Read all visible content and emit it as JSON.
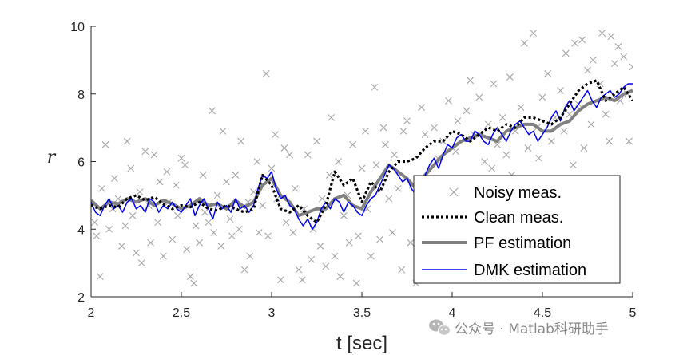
{
  "chart_data": {
    "type": "line",
    "xlabel": "t [sec]",
    "ylabel": "r",
    "xlim": [
      2,
      5
    ],
    "ylim": [
      2,
      10
    ],
    "xticks": [
      "2",
      "2.5",
      "3",
      "3.5",
      "4",
      "4.5",
      "5"
    ],
    "yticks": [
      "2",
      "4",
      "6",
      "8",
      "10"
    ],
    "grid": false,
    "legend_position": "bottom-right",
    "series": [
      {
        "name": "Noisy meas.",
        "style": "markers-x",
        "color": "#a6a6a6",
        "points": [
          [
            2.02,
            4.2
          ],
          [
            2.03,
            3.8
          ],
          [
            2.05,
            2.6
          ],
          [
            2.06,
            5.2
          ],
          [
            2.08,
            6.5
          ],
          [
            2.1,
            4.0
          ],
          [
            2.12,
            4.6
          ],
          [
            2.13,
            5.5
          ],
          [
            2.15,
            4.9
          ],
          [
            2.17,
            3.5
          ],
          [
            2.19,
            4.1
          ],
          [
            2.2,
            6.6
          ],
          [
            2.22,
            5.8
          ],
          [
            2.23,
            4.4
          ],
          [
            2.25,
            3.3
          ],
          [
            2.27,
            5.1
          ],
          [
            2.28,
            3.0
          ],
          [
            2.3,
            6.3
          ],
          [
            2.32,
            4.7
          ],
          [
            2.33,
            3.6
          ],
          [
            2.35,
            6.2
          ],
          [
            2.37,
            4.2
          ],
          [
            2.38,
            5.4
          ],
          [
            2.4,
            3.2
          ],
          [
            2.42,
            5.7
          ],
          [
            2.43,
            4.8
          ],
          [
            2.45,
            3.7
          ],
          [
            2.47,
            5.3
          ],
          [
            2.48,
            4.4
          ],
          [
            2.5,
            6.1
          ],
          [
            2.52,
            5.9
          ],
          [
            2.53,
            3.4
          ],
          [
            2.55,
            2.6
          ],
          [
            2.57,
            2.4
          ],
          [
            2.58,
            4.1
          ],
          [
            2.6,
            3.6
          ],
          [
            2.62,
            5.6
          ],
          [
            2.63,
            4.5
          ],
          [
            2.65,
            4.2
          ],
          [
            2.67,
            7.5
          ],
          [
            2.68,
            3.9
          ],
          [
            2.7,
            5.0
          ],
          [
            2.72,
            3.5
          ],
          [
            2.73,
            6.9
          ],
          [
            2.75,
            5.4
          ],
          [
            2.77,
            4.3
          ],
          [
            2.78,
            3.8
          ],
          [
            2.8,
            5.6
          ],
          [
            2.82,
            4.0
          ],
          [
            2.83,
            6.6
          ],
          [
            2.85,
            2.8
          ],
          [
            2.87,
            4.8
          ],
          [
            2.88,
            3.2
          ],
          [
            2.9,
            5.1
          ],
          [
            2.92,
            6.0
          ],
          [
            2.93,
            3.9
          ],
          [
            2.95,
            4.7
          ],
          [
            2.97,
            8.6
          ],
          [
            2.98,
            3.8
          ],
          [
            3.0,
            5.8
          ],
          [
            3.02,
            6.8
          ],
          [
            3.03,
            4.9
          ],
          [
            3.05,
            2.5
          ],
          [
            3.07,
            6.4
          ],
          [
            3.08,
            4.2
          ],
          [
            3.1,
            6.2
          ],
          [
            3.12,
            3.9
          ],
          [
            3.13,
            5.2
          ],
          [
            3.15,
            2.8
          ],
          [
            3.17,
            2.5
          ],
          [
            3.18,
            4.6
          ],
          [
            3.2,
            6.2
          ],
          [
            3.22,
            3.1
          ],
          [
            3.23,
            4.0
          ],
          [
            3.25,
            6.6
          ],
          [
            3.27,
            3.5
          ],
          [
            3.28,
            4.9
          ],
          [
            3.3,
            2.9
          ],
          [
            3.32,
            5.6
          ],
          [
            3.33,
            7.3
          ],
          [
            3.35,
            3.2
          ],
          [
            3.37,
            6.0
          ],
          [
            3.38,
            2.6
          ],
          [
            3.4,
            4.4
          ],
          [
            3.42,
            5.0
          ],
          [
            3.43,
            3.6
          ],
          [
            3.45,
            6.5
          ],
          [
            3.47,
            2.4
          ],
          [
            3.48,
            3.8
          ],
          [
            3.5,
            5.8
          ],
          [
            3.52,
            6.9
          ],
          [
            3.53,
            4.6
          ],
          [
            3.55,
            3.2
          ],
          [
            3.57,
            8.2
          ],
          [
            3.58,
            5.9
          ],
          [
            3.6,
            3.7
          ],
          [
            3.62,
            7.0
          ],
          [
            3.63,
            6.5
          ],
          [
            3.65,
            4.9
          ],
          [
            3.67,
            3.9
          ],
          [
            3.68,
            6.2
          ],
          [
            3.7,
            5.2
          ],
          [
            3.72,
            2.8
          ],
          [
            3.73,
            6.9
          ],
          [
            3.75,
            7.2
          ],
          [
            3.77,
            3.6
          ],
          [
            3.78,
            5.3
          ],
          [
            3.8,
            2.4
          ],
          [
            3.82,
            3.9
          ],
          [
            3.83,
            7.6
          ],
          [
            3.85,
            6.8
          ],
          [
            3.87,
            5.4
          ],
          [
            3.88,
            4.2
          ],
          [
            3.9,
            7.0
          ],
          [
            3.92,
            6.1
          ],
          [
            3.93,
            3.0
          ],
          [
            3.95,
            6.6
          ],
          [
            3.97,
            5.2
          ],
          [
            3.98,
            7.8
          ],
          [
            4.0,
            4.6
          ],
          [
            4.02,
            6.3
          ],
          [
            4.03,
            7.2
          ],
          [
            4.05,
            5.1
          ],
          [
            4.07,
            3.8
          ],
          [
            4.08,
            7.5
          ],
          [
            4.1,
            8.4
          ],
          [
            4.12,
            6.8
          ],
          [
            4.13,
            5.5
          ],
          [
            4.15,
            7.9
          ],
          [
            4.17,
            3.2
          ],
          [
            4.18,
            6.0
          ],
          [
            4.2,
            7.1
          ],
          [
            4.22,
            5.8
          ],
          [
            4.23,
            8.3
          ],
          [
            4.25,
            6.5
          ],
          [
            4.27,
            4.5
          ],
          [
            4.28,
            7.3
          ],
          [
            4.3,
            6.2
          ],
          [
            4.32,
            8.5
          ],
          [
            4.33,
            5.6
          ],
          [
            4.35,
            6.9
          ],
          [
            4.37,
            4.8
          ],
          [
            4.38,
            7.6
          ],
          [
            4.4,
            9.5
          ],
          [
            4.42,
            6.4
          ],
          [
            4.43,
            5.3
          ],
          [
            4.45,
            9.8
          ],
          [
            4.47,
            7.0
          ],
          [
            4.48,
            6.1
          ],
          [
            4.5,
            7.9
          ],
          [
            4.52,
            5.2
          ],
          [
            4.53,
            8.6
          ],
          [
            4.55,
            6.6
          ],
          [
            4.57,
            7.3
          ],
          [
            4.58,
            5.5
          ],
          [
            4.6,
            8.1
          ],
          [
            4.62,
            6.9
          ],
          [
            4.63,
            9.2
          ],
          [
            4.65,
            7.4
          ],
          [
            4.67,
            5.9
          ],
          [
            4.68,
            9.5
          ],
          [
            4.7,
            7.7
          ],
          [
            4.72,
            9.6
          ],
          [
            4.73,
            6.4
          ],
          [
            4.75,
            8.7
          ],
          [
            4.77,
            7.1
          ],
          [
            4.78,
            9.0
          ],
          [
            4.8,
            5.4
          ],
          [
            4.82,
            8.3
          ],
          [
            4.83,
            9.8
          ],
          [
            4.85,
            7.4
          ],
          [
            4.87,
            6.6
          ],
          [
            4.88,
            9.7
          ],
          [
            4.9,
            8.9
          ],
          [
            4.92,
            9.4
          ],
          [
            4.93,
            7.8
          ],
          [
            4.95,
            9.1
          ],
          [
            4.97,
            8.0
          ],
          [
            4.98,
            6.6
          ],
          [
            5.0,
            8.8
          ]
        ]
      },
      {
        "name": "Clean meas.",
        "style": "dotted",
        "color": "#000000",
        "x": [
          2.0,
          2.05,
          2.1,
          2.15,
          2.2,
          2.25,
          2.3,
          2.35,
          2.4,
          2.45,
          2.5,
          2.55,
          2.6,
          2.65,
          2.7,
          2.75,
          2.8,
          2.85,
          2.9,
          2.95,
          3.0,
          3.05,
          3.1,
          3.15,
          3.2,
          3.25,
          3.3,
          3.35,
          3.4,
          3.45,
          3.5,
          3.55,
          3.6,
          3.65,
          3.7,
          3.75,
          3.8,
          3.85,
          3.9,
          3.95,
          4.0,
          4.05,
          4.1,
          4.15,
          4.2,
          4.25,
          4.3,
          4.35,
          4.4,
          4.45,
          4.5,
          4.55,
          4.6,
          4.65,
          4.7,
          4.75,
          4.8,
          4.85,
          4.9,
          4.95,
          5.0
        ],
        "y": [
          4.7,
          4.6,
          4.7,
          4.65,
          4.9,
          5.0,
          4.85,
          4.95,
          4.75,
          4.6,
          4.7,
          4.65,
          4.8,
          4.6,
          4.55,
          4.7,
          4.6,
          4.5,
          4.6,
          5.6,
          5.3,
          4.6,
          4.5,
          4.7,
          4.4,
          4.2,
          4.7,
          5.7,
          5.3,
          5.5,
          4.8,
          5.4,
          5.1,
          5.7,
          6.0,
          6.0,
          6.1,
          6.4,
          6.6,
          6.6,
          6.9,
          6.8,
          6.6,
          6.8,
          7.0,
          6.9,
          7.1,
          7.0,
          7.3,
          7.3,
          7.2,
          7.1,
          7.3,
          7.7,
          8.1,
          8.3,
          8.4,
          7.8,
          8.0,
          8.2,
          7.8
        ]
      },
      {
        "name": "PF estimation",
        "style": "thick",
        "color": "#808080",
        "x": [
          2.0,
          2.05,
          2.1,
          2.15,
          2.2,
          2.25,
          2.3,
          2.35,
          2.4,
          2.45,
          2.5,
          2.55,
          2.6,
          2.65,
          2.7,
          2.75,
          2.8,
          2.85,
          2.9,
          2.95,
          3.0,
          3.05,
          3.1,
          3.15,
          3.2,
          3.25,
          3.3,
          3.35,
          3.4,
          3.45,
          3.5,
          3.55,
          3.6,
          3.65,
          3.7,
          3.75,
          3.8,
          3.85,
          3.9,
          3.95,
          4.0,
          4.05,
          4.1,
          4.15,
          4.2,
          4.25,
          4.3,
          4.35,
          4.4,
          4.45,
          4.5,
          4.55,
          4.6,
          4.65,
          4.7,
          4.75,
          4.8,
          4.85,
          4.9,
          4.95,
          5.0
        ],
        "y": [
          4.85,
          4.6,
          4.8,
          4.75,
          4.9,
          4.8,
          4.9,
          4.7,
          4.85,
          4.75,
          4.6,
          4.7,
          4.9,
          4.7,
          4.75,
          4.6,
          4.85,
          4.65,
          4.8,
          5.3,
          5.5,
          5.0,
          4.8,
          4.4,
          4.5,
          4.6,
          4.6,
          4.9,
          5.0,
          4.7,
          4.6,
          5.1,
          5.5,
          5.9,
          5.7,
          5.5,
          5.2,
          5.6,
          5.9,
          6.2,
          6.4,
          6.6,
          6.7,
          6.8,
          6.7,
          6.6,
          6.9,
          7.0,
          7.1,
          7.1,
          6.9,
          6.9,
          7.1,
          7.2,
          7.5,
          7.7,
          7.8,
          7.9,
          7.8,
          8.0,
          8.1
        ]
      },
      {
        "name": "DMK estimation",
        "style": "thin",
        "color": "#0000ee",
        "x": [
          2.0,
          2.025,
          2.05,
          2.075,
          2.1,
          2.125,
          2.15,
          2.175,
          2.2,
          2.225,
          2.25,
          2.275,
          2.3,
          2.325,
          2.35,
          2.375,
          2.4,
          2.425,
          2.45,
          2.475,
          2.5,
          2.525,
          2.55,
          2.575,
          2.6,
          2.625,
          2.65,
          2.675,
          2.7,
          2.725,
          2.75,
          2.775,
          2.8,
          2.825,
          2.85,
          2.875,
          2.9,
          2.925,
          2.95,
          2.975,
          3.0,
          3.025,
          3.05,
          3.075,
          3.1,
          3.125,
          3.15,
          3.175,
          3.2,
          3.225,
          3.25,
          3.275,
          3.3,
          3.325,
          3.35,
          3.375,
          3.4,
          3.425,
          3.45,
          3.475,
          3.5,
          3.525,
          3.55,
          3.575,
          3.6,
          3.625,
          3.65,
          3.675,
          3.7,
          3.725,
          3.75,
          3.775,
          3.8,
          3.825,
          3.85,
          3.875,
          3.9,
          3.925,
          3.95,
          3.975,
          4.0,
          4.025,
          4.05,
          4.075,
          4.1,
          4.125,
          4.15,
          4.175,
          4.2,
          4.225,
          4.25,
          4.275,
          4.3,
          4.325,
          4.35,
          4.375,
          4.4,
          4.425,
          4.45,
          4.475,
          4.5,
          4.525,
          4.55,
          4.575,
          4.6,
          4.625,
          4.65,
          4.675,
          4.7,
          4.725,
          4.75,
          4.775,
          4.8,
          4.825,
          4.85,
          4.875,
          4.9,
          4.925,
          4.95,
          4.975,
          5.0
        ],
        "y": [
          4.8,
          4.5,
          4.4,
          4.7,
          4.9,
          4.6,
          4.7,
          4.5,
          4.8,
          4.9,
          4.6,
          4.7,
          4.5,
          4.9,
          4.8,
          4.5,
          4.7,
          4.6,
          4.8,
          4.6,
          4.5,
          4.7,
          4.9,
          4.4,
          4.7,
          4.9,
          4.6,
          4.3,
          4.8,
          4.6,
          4.7,
          4.5,
          4.9,
          4.6,
          4.7,
          4.5,
          4.7,
          5.2,
          5.6,
          5.5,
          5.7,
          5.2,
          4.9,
          5.0,
          4.7,
          4.6,
          4.3,
          4.1,
          4.3,
          4.0,
          4.2,
          4.6,
          4.8,
          4.6,
          4.9,
          4.8,
          4.5,
          4.8,
          4.7,
          4.5,
          4.4,
          4.7,
          4.9,
          5.0,
          5.3,
          5.6,
          5.9,
          5.8,
          5.6,
          5.4,
          5.5,
          5.2,
          5.0,
          5.3,
          5.6,
          5.9,
          6.1,
          5.8,
          6.2,
          6.5,
          6.4,
          6.7,
          6.8,
          6.6,
          6.6,
          6.9,
          6.8,
          6.6,
          6.5,
          6.8,
          7.0,
          6.8,
          6.6,
          6.9,
          7.1,
          7.2,
          7.0,
          6.8,
          6.9,
          6.6,
          6.8,
          7.0,
          7.3,
          7.5,
          7.2,
          7.6,
          7.8,
          7.5,
          7.7,
          7.9,
          8.1,
          7.8,
          7.6,
          7.9,
          8.0,
          8.1,
          7.9,
          8.0,
          8.2,
          8.3,
          8.3
        ]
      }
    ]
  },
  "watermark": {
    "text": "公众号 · Matlab科研助手",
    "icon": "wechat-icon"
  }
}
